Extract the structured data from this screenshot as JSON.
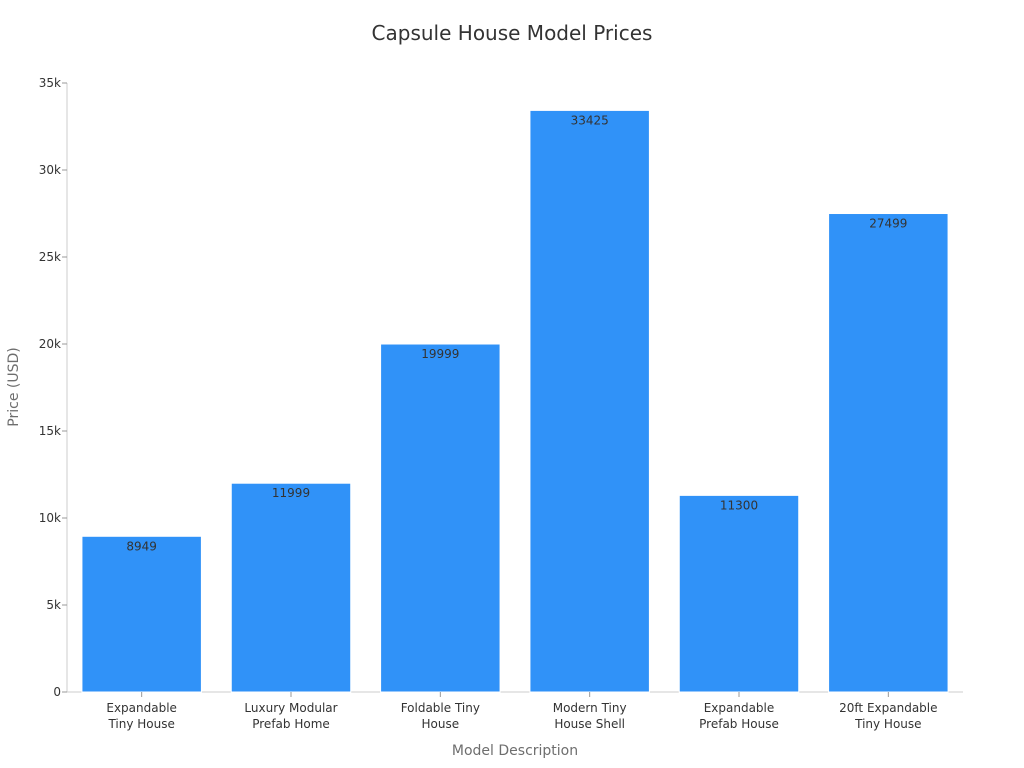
{
  "chart_data": {
    "type": "bar",
    "title": "Capsule House Model Prices",
    "xlabel": "Model Description",
    "ylabel": "Price (USD)",
    "categories": [
      [
        "Expandable",
        "Tiny House"
      ],
      [
        "Luxury Modular",
        "Prefab Home"
      ],
      [
        "Foldable Tiny",
        "House"
      ],
      [
        "Modern Tiny",
        "House Shell"
      ],
      [
        "Expandable",
        "Prefab House"
      ],
      [
        "20ft Expandable",
        "Tiny House"
      ]
    ],
    "values": [
      8949,
      11999,
      19999,
      33425,
      11300,
      27499
    ],
    "ylim": [
      0,
      35000
    ],
    "yticks": [
      0,
      5000,
      10000,
      15000,
      20000,
      25000,
      30000,
      35000
    ],
    "ytick_labels": [
      "0",
      "5k",
      "10k",
      "15k",
      "20k",
      "25k",
      "30k",
      "35k"
    ],
    "data_labels": [
      "8949",
      "11999",
      "19999",
      "33425",
      "11300",
      "27499"
    ],
    "bar_color": "#3092f8",
    "grid": false,
    "legend": "none"
  }
}
